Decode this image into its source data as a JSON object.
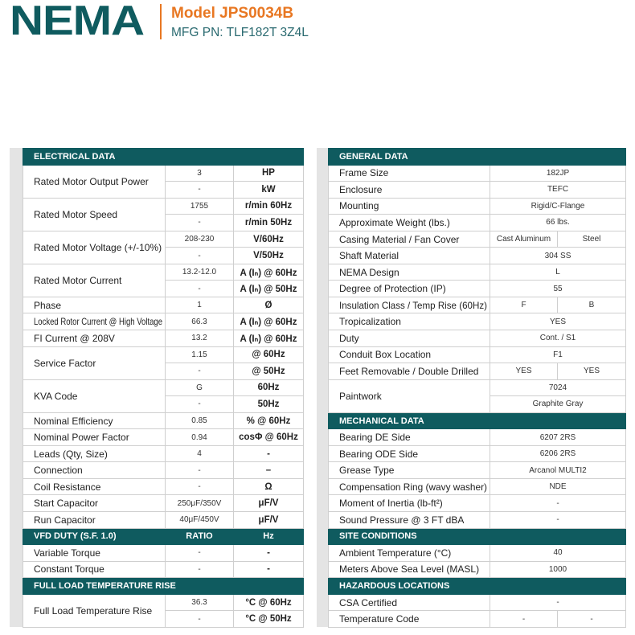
{
  "header": {
    "logo": "NEMA",
    "model": "Model JPS0034B",
    "mfg_pn": "MFG PN: TLF182T 3Z4L"
  },
  "left_table": {
    "sections": [
      {
        "title": "ELECTRICAL DATA",
        "rows": [
          {
            "label": "Rated Motor Output Power",
            "lines": [
              [
                "3",
                "HP"
              ],
              [
                "-",
                "kW"
              ]
            ]
          },
          {
            "label": "Rated Motor Speed",
            "lines": [
              [
                "1755",
                "r/min 60Hz"
              ],
              [
                "-",
                "r/min 50Hz"
              ]
            ]
          },
          {
            "label": "Rated Motor Voltage (+/-10%)",
            "lines": [
              [
                "208-230",
                "V/60Hz"
              ],
              [
                "-",
                "V/50Hz"
              ]
            ]
          },
          {
            "label": "Rated Motor Current",
            "lines": [
              [
                "13.2-12.0",
                "A (Iₙ) @ 60Hz"
              ],
              [
                "-",
                "A (Iₙ) @ 50Hz"
              ]
            ]
          },
          {
            "label": "Phase",
            "lines": [
              [
                "1",
                "Ø"
              ]
            ]
          },
          {
            "label": "Locked Rotor Current @ High Voltage",
            "lines": [
              [
                "66.3",
                "A (Iₙ) @ 60Hz"
              ]
            ]
          },
          {
            "label": "FI Current @ 208V",
            "lines": [
              [
                "13.2",
                "A (Iₙ) @ 60Hz"
              ]
            ]
          },
          {
            "label": "Service Factor",
            "lines": [
              [
                "1.15",
                "@ 60Hz"
              ],
              [
                "-",
                "@ 50Hz"
              ]
            ]
          },
          {
            "label": "KVA Code",
            "lines": [
              [
                "G",
                "60Hz"
              ],
              [
                "-",
                "50Hz"
              ]
            ]
          },
          {
            "label": "Nominal Efficiency",
            "lines": [
              [
                "0.85",
                "% @ 60Hz"
              ]
            ]
          },
          {
            "label": "Nominal Power Factor",
            "lines": [
              [
                "0.94",
                "cosΦ @ 60Hz"
              ]
            ]
          },
          {
            "label": "Leads (Qty, Size)",
            "lines": [
              [
                "4",
                "-"
              ]
            ]
          },
          {
            "label": "Connection",
            "lines": [
              [
                "-",
                "–"
              ]
            ]
          },
          {
            "label": "Coil Resistance",
            "lines": [
              [
                "-",
                "Ω"
              ]
            ]
          },
          {
            "label": "Start Capacitor",
            "lines": [
              [
                "250μF/350V",
                "μF/V"
              ]
            ]
          },
          {
            "label": "Run Capacitor",
            "lines": [
              [
                "40μF/450V",
                "μF/V"
              ]
            ]
          }
        ]
      },
      {
        "title": "VFD DUTY (S.F. 1.0)",
        "columns": [
          "RATIO",
          "Hz"
        ],
        "rows": [
          {
            "label": "Variable Torque",
            "lines": [
              [
                "-",
                "-"
              ]
            ]
          },
          {
            "label": "Constant Torque",
            "lines": [
              [
                "-",
                "-"
              ]
            ]
          }
        ]
      },
      {
        "title": "FULL LOAD TEMPERATURE RISE",
        "rows": [
          {
            "label": "Full Load Temperature Rise",
            "lines": [
              [
                "36.3",
                "°C @ 60Hz"
              ],
              [
                "-",
                "°C @ 50Hz"
              ]
            ]
          }
        ]
      }
    ]
  },
  "right_table": {
    "sections": [
      {
        "title": "GENERAL DATA",
        "rows": [
          {
            "label": "Frame Size",
            "lines": [
              [
                "182JP"
              ]
            ]
          },
          {
            "label": "Enclosure",
            "lines": [
              [
                "TEFC"
              ]
            ]
          },
          {
            "label": "Mounting",
            "lines": [
              [
                "Rigid/C-Flange"
              ]
            ]
          },
          {
            "label": "Approximate Weight (lbs.)",
            "lines": [
              [
                "66 lbs."
              ]
            ]
          },
          {
            "label": "Casing Material / Fan Cover",
            "lines": [
              [
                "Cast Aluminum",
                "Steel"
              ]
            ]
          },
          {
            "label": "Shaft Material",
            "lines": [
              [
                "304 SS"
              ]
            ]
          },
          {
            "label": "NEMA Design",
            "lines": [
              [
                "L"
              ]
            ]
          },
          {
            "label": "Degree of Protection (IP)",
            "lines": [
              [
                "55"
              ]
            ]
          },
          {
            "label": "Insulation Class / Temp Rise (60Hz)",
            "lines": [
              [
                "F",
                "B"
              ]
            ]
          },
          {
            "label": "Tropicalization",
            "lines": [
              [
                "YES"
              ]
            ]
          },
          {
            "label": "Duty",
            "lines": [
              [
                "Cont. / S1"
              ]
            ]
          },
          {
            "label": "Conduit Box Location",
            "lines": [
              [
                "F1"
              ]
            ]
          },
          {
            "label": "Feet Removable / Double Drilled",
            "lines": [
              [
                "YES",
                "YES"
              ]
            ]
          },
          {
            "label": "Paintwork",
            "lines": [
              [
                "7024"
              ],
              [
                "Graphite Gray"
              ]
            ]
          }
        ]
      },
      {
        "title": "MECHANICAL DATA",
        "rows": [
          {
            "label": "Bearing DE Side",
            "lines": [
              [
                "6207 2RS"
              ]
            ]
          },
          {
            "label": "Bearing ODE Side",
            "lines": [
              [
                "6206 2RS"
              ]
            ]
          },
          {
            "label": "Grease Type",
            "lines": [
              [
                "Arcanol MULTI2"
              ]
            ]
          },
          {
            "label": "Compensation Ring (wavy washer)",
            "lines": [
              [
                "NDE"
              ]
            ]
          },
          {
            "label": "Moment of Inertia (lb-ft²)",
            "lines": [
              [
                "-"
              ]
            ]
          },
          {
            "label": "Sound Pressure @ 3 FT dBA",
            "lines": [
              [
                "-"
              ]
            ]
          }
        ]
      },
      {
        "title": "SITE CONDITIONS",
        "rows": [
          {
            "label": "Ambient Temperature (°C)",
            "lines": [
              [
                "40"
              ]
            ]
          },
          {
            "label": "Meters Above Sea Level (MASL)",
            "lines": [
              [
                "1000"
              ]
            ]
          }
        ]
      },
      {
        "title": "HAZARDOUS LOCATIONS",
        "rows": [
          {
            "label": "CSA Certified",
            "lines": [
              [
                "-"
              ]
            ]
          },
          {
            "label": "Temperature Code",
            "lines": [
              [
                "-",
                "-"
              ]
            ]
          }
        ]
      }
    ]
  }
}
